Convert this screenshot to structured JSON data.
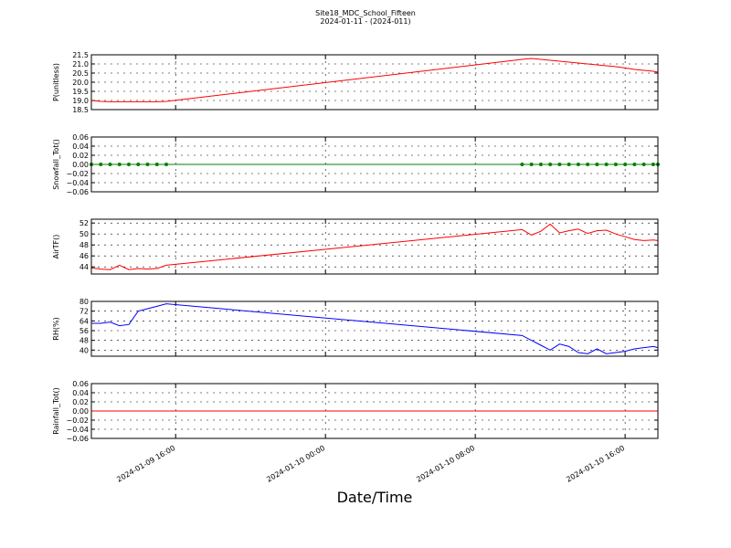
{
  "figure": {
    "title": "Site18_MDC_School_Fifteen",
    "subtitle": "2024-01-11 - (2024-011)",
    "xlabel": "Date/Time"
  },
  "chart_data": [
    {
      "type": "line",
      "ylabel": "P(unitless)",
      "x": [
        "2024-01-09 11:30",
        "2024-01-09 12:00",
        "2024-01-09 12:30",
        "2024-01-09 13:00",
        "2024-01-09 13:30",
        "2024-01-09 14:00",
        "2024-01-09 14:30",
        "2024-01-09 15:00",
        "2024-01-09 15:30",
        "2024-01-10 10:30",
        "2024-01-10 11:00",
        "2024-01-10 11:30",
        "2024-01-10 12:00",
        "2024-01-10 12:30",
        "2024-01-10 13:00",
        "2024-01-10 13:30",
        "2024-01-10 14:00",
        "2024-01-10 14:30",
        "2024-01-10 15:00",
        "2024-01-10 15:30",
        "2024-01-10 16:00",
        "2024-01-10 16:30",
        "2024-01-10 17:00",
        "2024-01-10 17:30",
        "2024-01-10 17:45"
      ],
      "series": [
        {
          "name": "P",
          "color": "#ff0000",
          "values": [
            19.0,
            18.95,
            18.93,
            18.93,
            18.93,
            18.93,
            18.93,
            18.93,
            18.95,
            21.25,
            21.3,
            21.25,
            21.2,
            21.15,
            21.1,
            21.05,
            21.0,
            20.95,
            20.9,
            20.85,
            20.78,
            20.7,
            20.65,
            20.6,
            20.55
          ]
        }
      ],
      "xlim": [
        "2024-01-09 11:30",
        "2024-01-10 17:45"
      ],
      "xticks": [
        "2024-01-09 16:00",
        "2024-01-10 00:00",
        "2024-01-10 08:00",
        "2024-01-10 16:00"
      ],
      "ylim": [
        18.5,
        21.5
      ],
      "yticks": [
        {
          "value": 18.5,
          "label": "18.5"
        },
        {
          "value": 19.0,
          "label": "19.0"
        },
        {
          "value": 19.5,
          "label": "19.5"
        },
        {
          "value": 20.0,
          "label": "20.0"
        },
        {
          "value": 20.5,
          "label": "20.5"
        },
        {
          "value": 21.0,
          "label": "21.0"
        },
        {
          "value": 21.5,
          "label": "21.5"
        }
      ],
      "grid": true
    },
    {
      "type": "line",
      "ylabel": "Snowfall_Tot()",
      "marker": true,
      "x": [
        "2024-01-09 11:30",
        "2024-01-09 12:00",
        "2024-01-09 12:30",
        "2024-01-09 13:00",
        "2024-01-09 13:30",
        "2024-01-09 14:00",
        "2024-01-09 14:30",
        "2024-01-09 15:00",
        "2024-01-09 15:30",
        "2024-01-10 10:30",
        "2024-01-10 11:00",
        "2024-01-10 11:30",
        "2024-01-10 12:00",
        "2024-01-10 12:30",
        "2024-01-10 13:00",
        "2024-01-10 13:30",
        "2024-01-10 14:00",
        "2024-01-10 14:30",
        "2024-01-10 15:00",
        "2024-01-10 15:30",
        "2024-01-10 16:00",
        "2024-01-10 16:30",
        "2024-01-10 17:00",
        "2024-01-10 17:30",
        "2024-01-10 17:45"
      ],
      "series": [
        {
          "name": "Snowfall_Tot",
          "color": "#008000",
          "values": [
            0,
            0,
            0,
            0,
            0,
            0,
            0,
            0,
            0,
            0,
            0,
            0,
            0,
            0,
            0,
            0,
            0,
            0,
            0,
            0,
            0,
            0,
            0,
            0,
            0
          ]
        }
      ],
      "xlim": [
        "2024-01-09 11:30",
        "2024-01-10 17:45"
      ],
      "xticks": [
        "2024-01-09 16:00",
        "2024-01-10 00:00",
        "2024-01-10 08:00",
        "2024-01-10 16:00"
      ],
      "ylim": [
        -0.06,
        0.06
      ],
      "yticks": [
        {
          "value": -0.06,
          "label": "−0.06"
        },
        {
          "value": -0.04,
          "label": "−0.04"
        },
        {
          "value": -0.02,
          "label": "−0.02"
        },
        {
          "value": 0,
          "label": "0.00"
        },
        {
          "value": 0.02,
          "label": "0.02"
        },
        {
          "value": 0.04,
          "label": "0.04"
        },
        {
          "value": 0.06,
          "label": "0.06"
        }
      ],
      "grid": true
    },
    {
      "type": "line",
      "ylabel": "AirTF()",
      "x": [
        "2024-01-09 11:30",
        "2024-01-09 12:00",
        "2024-01-09 12:30",
        "2024-01-09 13:00",
        "2024-01-09 13:30",
        "2024-01-09 14:00",
        "2024-01-09 14:30",
        "2024-01-09 15:00",
        "2024-01-09 15:30",
        "2024-01-10 10:30",
        "2024-01-10 11:00",
        "2024-01-10 11:30",
        "2024-01-10 12:00",
        "2024-01-10 12:30",
        "2024-01-10 13:00",
        "2024-01-10 13:30",
        "2024-01-10 14:00",
        "2024-01-10 14:30",
        "2024-01-10 15:00",
        "2024-01-10 15:30",
        "2024-01-10 16:00",
        "2024-01-10 16:30",
        "2024-01-10 17:00",
        "2024-01-10 17:30",
        "2024-01-10 17:45"
      ],
      "series": [
        {
          "name": "AirTF",
          "color": "#ff0000",
          "values": [
            43.8,
            43.6,
            43.5,
            44.3,
            43.5,
            43.7,
            43.6,
            43.7,
            44.3,
            50.8,
            49.8,
            50.5,
            51.8,
            50.2,
            50.6,
            50.9,
            50.1,
            50.6,
            50.7,
            50.0,
            49.5,
            49.0,
            48.8,
            48.9,
            48.8
          ]
        }
      ],
      "xlim": [
        "2024-01-09 11:30",
        "2024-01-10 17:45"
      ],
      "xticks": [
        "2024-01-09 16:00",
        "2024-01-10 00:00",
        "2024-01-10 08:00",
        "2024-01-10 16:00"
      ],
      "ylim": [
        42.7,
        52.7
      ],
      "yticks": [
        44,
        46,
        48,
        50,
        52
      ],
      "grid": true
    },
    {
      "type": "line",
      "ylabel": "RH(%)",
      "x": [
        "2024-01-09 11:30",
        "2024-01-09 12:00",
        "2024-01-09 12:30",
        "2024-01-09 13:00",
        "2024-01-09 13:30",
        "2024-01-09 14:00",
        "2024-01-09 14:30",
        "2024-01-09 15:00",
        "2024-01-09 15:30",
        "2024-01-10 10:30",
        "2024-01-10 11:00",
        "2024-01-10 11:30",
        "2024-01-10 12:00",
        "2024-01-10 12:30",
        "2024-01-10 13:00",
        "2024-01-10 13:30",
        "2024-01-10 14:00",
        "2024-01-10 14:30",
        "2024-01-10 15:00",
        "2024-01-10 15:30",
        "2024-01-10 16:00",
        "2024-01-10 16:30",
        "2024-01-10 17:00",
        "2024-01-10 17:30",
        "2024-01-10 17:45"
      ],
      "series": [
        {
          "name": "RH",
          "color": "#0000ff",
          "values": [
            62,
            62,
            63,
            60,
            61,
            72,
            74,
            76,
            78,
            52,
            48,
            44,
            40,
            45,
            43,
            38,
            37,
            41,
            37,
            38,
            39,
            41,
            42,
            43,
            42
          ]
        }
      ],
      "xlim": [
        "2024-01-09 11:30",
        "2024-01-10 17:45"
      ],
      "xticks": [
        "2024-01-09 16:00",
        "2024-01-10 00:00",
        "2024-01-10 08:00",
        "2024-01-10 16:00"
      ],
      "ylim": [
        35,
        80
      ],
      "yticks": [
        40,
        48,
        56,
        64,
        72,
        80
      ],
      "grid": true
    },
    {
      "type": "line",
      "ylabel": "Rainfall_Tot()",
      "x": [
        "2024-01-09 11:30",
        "2024-01-09 12:00",
        "2024-01-09 12:30",
        "2024-01-09 13:00",
        "2024-01-09 13:30",
        "2024-01-09 14:00",
        "2024-01-09 14:30",
        "2024-01-09 15:00",
        "2024-01-09 15:30",
        "2024-01-10 10:30",
        "2024-01-10 11:00",
        "2024-01-10 11:30",
        "2024-01-10 12:00",
        "2024-01-10 12:30",
        "2024-01-10 13:00",
        "2024-01-10 13:30",
        "2024-01-10 14:00",
        "2024-01-10 14:30",
        "2024-01-10 15:00",
        "2024-01-10 15:30",
        "2024-01-10 16:00",
        "2024-01-10 16:30",
        "2024-01-10 17:00",
        "2024-01-10 17:30",
        "2024-01-10 17:45"
      ],
      "series": [
        {
          "name": "Rainfall_Tot",
          "color": "#ff0000",
          "values": [
            0,
            0,
            0,
            0,
            0,
            0,
            0,
            0,
            0,
            0,
            0,
            0,
            0,
            0,
            0,
            0,
            0,
            0,
            0,
            0,
            0,
            0,
            0,
            0,
            0
          ]
        }
      ],
      "xlim": [
        "2024-01-09 11:30",
        "2024-01-10 17:45"
      ],
      "xticks": [
        "2024-01-09 16:00",
        "2024-01-10 00:00",
        "2024-01-10 08:00",
        "2024-01-10 16:00"
      ],
      "xtick_labels": true,
      "ylim": [
        -0.06,
        0.06
      ],
      "yticks": [
        {
          "value": -0.06,
          "label": "−0.06"
        },
        {
          "value": -0.04,
          "label": "−0.04"
        },
        {
          "value": -0.02,
          "label": "−0.02"
        },
        {
          "value": 0,
          "label": "0.00"
        },
        {
          "value": 0.02,
          "label": "0.02"
        },
        {
          "value": 0.04,
          "label": "0.04"
        },
        {
          "value": 0.06,
          "label": "0.06"
        }
      ],
      "grid": true
    }
  ]
}
